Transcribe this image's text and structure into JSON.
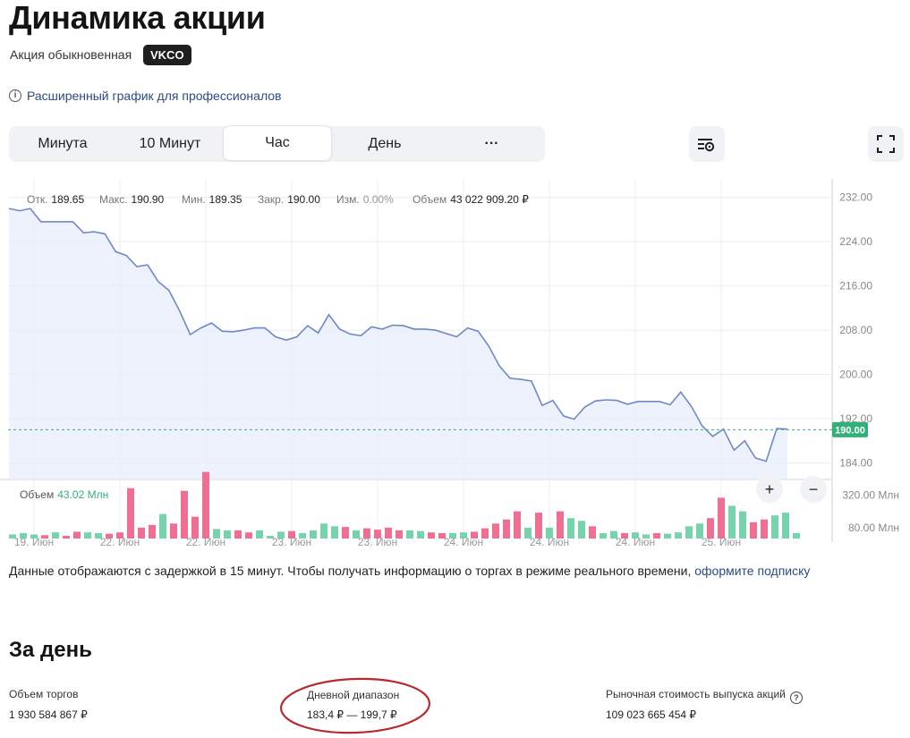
{
  "header": {
    "title": "Динамика акции",
    "share_type": "Акция обыкновенная",
    "ticker": "VKCO",
    "pro_link": "Расширенный график для профессионалов"
  },
  "tabs": [
    {
      "label": "Минута"
    },
    {
      "label": "10 Минут"
    },
    {
      "label": "Час"
    },
    {
      "label": "День"
    },
    {
      "label": "···"
    }
  ],
  "active_tab": "Час",
  "stats": {
    "open_label": "Отк.",
    "open": "189.65",
    "high_label": "Макс.",
    "high": "190.90",
    "low_label": "Мин.",
    "low": "189.35",
    "close_label": "Закр.",
    "close": "190.00",
    "change_label": "Изм.",
    "change": "0.00%",
    "volume_label": "Объем",
    "volume": "43 022 909.20 ₽"
  },
  "volume_legend": {
    "label": "Объем",
    "value": "43.02 Млн"
  },
  "zoom": {
    "in": "+",
    "out": "−"
  },
  "colors": {
    "line": "#6f88c8",
    "area": "#e8eefc",
    "current": "#33b07a",
    "up": "#76d3ac",
    "down": "#ee6f92",
    "link": "#2b4a86"
  },
  "chart_data": {
    "type": "line",
    "x_ticks": [
      "19. Июн",
      "22. Июн",
      "22. Июн",
      "23. Июн",
      "23. Июн",
      "24. Июн",
      "24. Июн",
      "24. Июн",
      "25. Июн"
    ],
    "y_ticks": [
      "232.00",
      "224.00",
      "216.00",
      "208.00",
      "200.00",
      "192.00",
      "184.00"
    ],
    "ylim": [
      181,
      236
    ],
    "current_price": "190.00",
    "price": [
      230,
      229.6,
      230,
      227.6,
      227.6,
      227.6,
      227.6,
      225.6,
      225.8,
      225.4,
      222.2,
      221.5,
      219.5,
      219.8,
      216.8,
      215.2,
      211.5,
      207.2,
      208.4,
      209.3,
      207.8,
      207.7,
      208,
      208.4,
      208.4,
      206.8,
      206.2,
      206.8,
      208.8,
      207.5,
      210.8,
      208.2,
      207.3,
      207,
      208.6,
      208.2,
      208.9,
      208.8,
      208.2,
      208.2,
      208,
      207.4,
      206.8,
      208.4,
      207.8,
      205.1,
      201.5,
      199.3,
      199.1,
      198.8,
      194.4,
      195.3,
      192.5,
      191.9,
      194.1,
      195.2,
      195.4,
      195.3,
      194.6,
      195.1,
      195.1,
      195.1,
      194.5,
      196.8,
      194.2,
      190.7,
      188.8,
      190.1,
      186.3,
      188,
      184.9,
      184.3,
      190.2,
      190.1
    ],
    "volume_ticks": [
      "320.00 Млн",
      "80.00 Млн"
    ],
    "volume_ylim": [
      0,
      500
    ],
    "volume": [
      {
        "v": 30,
        "up": true
      },
      {
        "v": 40,
        "up": true
      },
      {
        "v": 30,
        "up": true
      },
      {
        "v": 25,
        "up": false
      },
      {
        "v": 45,
        "up": true
      },
      {
        "v": 20,
        "up": false
      },
      {
        "v": 50,
        "up": false
      },
      {
        "v": 45,
        "up": true
      },
      {
        "v": 40,
        "up": true
      },
      {
        "v": 35,
        "up": false
      },
      {
        "v": 45,
        "up": false
      },
      {
        "v": 370,
        "up": false
      },
      {
        "v": 80,
        "up": false
      },
      {
        "v": 100,
        "up": false
      },
      {
        "v": 180,
        "up": true
      },
      {
        "v": 110,
        "up": false
      },
      {
        "v": 350,
        "up": false
      },
      {
        "v": 160,
        "up": false
      },
      {
        "v": 490,
        "up": false
      },
      {
        "v": 70,
        "up": true
      },
      {
        "v": 60,
        "up": true
      },
      {
        "v": 60,
        "up": false
      },
      {
        "v": 45,
        "up": false
      },
      {
        "v": 60,
        "up": true
      },
      {
        "v": 20,
        "up": true
      },
      {
        "v": 50,
        "up": true
      },
      {
        "v": 55,
        "up": false
      },
      {
        "v": 40,
        "up": true
      },
      {
        "v": 60,
        "up": true
      },
      {
        "v": 110,
        "up": true
      },
      {
        "v": 90,
        "up": true
      },
      {
        "v": 85,
        "up": false
      },
      {
        "v": 60,
        "up": true
      },
      {
        "v": 75,
        "up": false
      },
      {
        "v": 65,
        "up": false
      },
      {
        "v": 80,
        "up": false
      },
      {
        "v": 60,
        "up": false
      },
      {
        "v": 60,
        "up": true
      },
      {
        "v": 55,
        "up": true
      },
      {
        "v": 45,
        "up": false
      },
      {
        "v": 40,
        "up": false
      },
      {
        "v": 40,
        "up": true
      },
      {
        "v": 45,
        "up": true
      },
      {
        "v": 50,
        "up": false
      },
      {
        "v": 75,
        "up": false
      },
      {
        "v": 110,
        "up": false
      },
      {
        "v": 140,
        "up": false
      },
      {
        "v": 200,
        "up": false
      },
      {
        "v": 80,
        "up": true
      },
      {
        "v": 190,
        "up": false
      },
      {
        "v": 80,
        "up": true
      },
      {
        "v": 200,
        "up": false
      },
      {
        "v": 150,
        "up": true
      },
      {
        "v": 130,
        "up": true
      },
      {
        "v": 90,
        "up": false
      },
      {
        "v": 40,
        "up": true
      },
      {
        "v": 55,
        "up": true
      },
      {
        "v": 40,
        "up": false
      },
      {
        "v": 45,
        "up": true
      },
      {
        "v": 30,
        "up": true
      },
      {
        "v": 40,
        "up": false
      },
      {
        "v": 35,
        "up": true
      },
      {
        "v": 45,
        "up": true
      },
      {
        "v": 90,
        "up": true
      },
      {
        "v": 110,
        "up": true
      },
      {
        "v": 150,
        "up": false
      },
      {
        "v": 300,
        "up": false
      },
      {
        "v": 240,
        "up": true
      },
      {
        "v": 200,
        "up": true
      },
      {
        "v": 120,
        "up": false
      },
      {
        "v": 140,
        "up": false
      },
      {
        "v": 170,
        "up": true
      },
      {
        "v": 190,
        "up": true
      },
      {
        "v": 40,
        "up": true
      }
    ]
  },
  "note": {
    "text": "Данные отображаются с задержкой в 15 минут. Чтобы получать информацию о торгах в режиме реального времени, ",
    "link": "оформите подписку"
  },
  "day": {
    "title": "За день",
    "turnover_label": "Объем торгов",
    "turnover_value": "1 930 584 867 ₽",
    "range_label": "Дневной диапазон",
    "range_value": "183,4 ₽ — 199,7 ₽",
    "cap_label": "Рыночная стоимость выпуска акций",
    "cap_help": "?",
    "cap_value": "109 023 665 454 ₽"
  }
}
